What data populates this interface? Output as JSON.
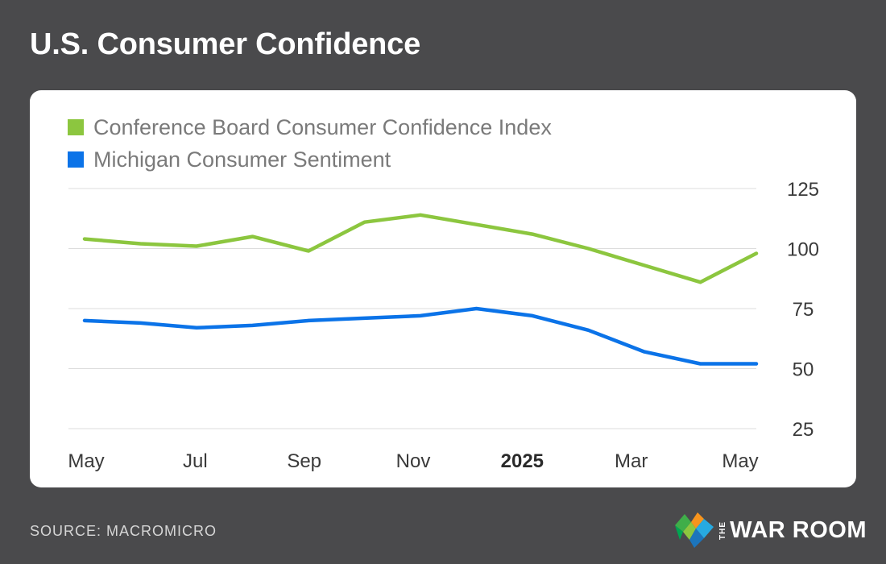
{
  "title": "U.S. Consumer Confidence",
  "source": "SOURCE: MACROMICRO",
  "brand": {
    "prefix": "THE",
    "name": "WAR ROOM",
    "icon": "war-room-logo-icon"
  },
  "colors": {
    "background": "#4a4a4c",
    "card": "#ffffff",
    "conference_board": "#8cc63f",
    "michigan": "#0b73e8",
    "grid": "#dcdcdc"
  },
  "chart_data": {
    "type": "line",
    "title": "",
    "xlabel": "",
    "ylabel": "",
    "y_axis_position": "right",
    "ylim": [
      25,
      125
    ],
    "y_ticks": [
      125,
      100,
      75,
      50,
      25
    ],
    "grid": true,
    "legend_position": "top-left",
    "x_tick_labels": [
      {
        "label": "May",
        "bold": false
      },
      {
        "label": "Jul",
        "bold": false
      },
      {
        "label": "Sep",
        "bold": false
      },
      {
        "label": "Nov",
        "bold": false
      },
      {
        "label": "2025",
        "bold": true
      },
      {
        "label": "Mar",
        "bold": false
      },
      {
        "label": "May",
        "bold": false
      }
    ],
    "x": [
      "2024-05",
      "2024-06",
      "2024-07",
      "2024-08",
      "2024-09",
      "2024-10",
      "2024-11",
      "2024-12",
      "2025-01",
      "2025-02",
      "2025-03",
      "2025-04",
      "2025-05"
    ],
    "series": [
      {
        "name": "Conference Board Consumer Confidence Index",
        "color": "#8cc63f",
        "values": [
          104,
          102,
          101,
          105,
          99,
          111,
          114,
          110,
          106,
          100,
          93,
          86,
          98
        ]
      },
      {
        "name": "Michigan Consumer Sentiment",
        "color": "#0b73e8",
        "values": [
          70,
          69,
          67,
          68,
          70,
          71,
          72,
          75,
          72,
          66,
          57,
          52,
          52
        ]
      }
    ]
  }
}
